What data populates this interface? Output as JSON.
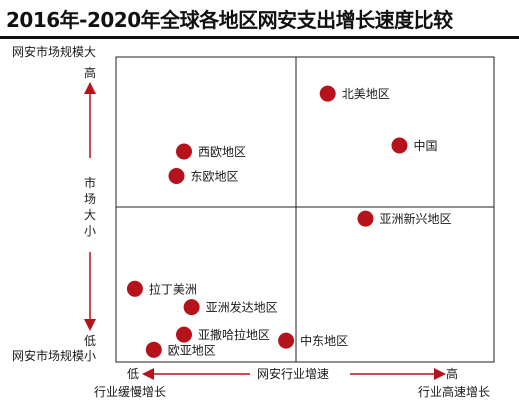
{
  "title": "2016年-2020年全球各地区网安支出增长速度比较",
  "y_axis": {
    "top_label": "网安市场规模大",
    "bottom_label": "网安市场规模小",
    "high": "高",
    "low": "低",
    "name_chars": [
      "市",
      "场",
      "大",
      "小"
    ]
  },
  "x_axis": {
    "name": "网安行业增速",
    "low": "低",
    "high": "高",
    "left_label": "行业缓慢增长",
    "right_label": "行业高速增长"
  },
  "colors": {
    "point": "#b5121b",
    "highlight_text": "#b5121b",
    "grid": "#222222",
    "arrow": "#b5121b"
  },
  "chart_data": {
    "type": "scatter",
    "title": "2016年-2020年全球各地区网安支出增长速度比较",
    "xlabel": "网安行业增速",
    "ylabel": "市场大小",
    "xlim": [
      0,
      10
    ],
    "ylim": [
      0,
      10
    ],
    "points": [
      {
        "label": "北美地区",
        "x": 5.6,
        "y": 8.8,
        "highlight": false
      },
      {
        "label": "中国",
        "x": 7.5,
        "y": 7.1,
        "highlight": true
      },
      {
        "label": "西欧地区",
        "x": 1.8,
        "y": 6.9,
        "highlight": false
      },
      {
        "label": "东欧地区",
        "x": 1.6,
        "y": 6.1,
        "highlight": false
      },
      {
        "label": "亚洲新兴地区",
        "x": 6.6,
        "y": 4.7,
        "highlight": false
      },
      {
        "label": "拉丁美洲",
        "x": 0.5,
        "y": 2.4,
        "highlight": false
      },
      {
        "label": "亚洲发达地区",
        "x": 2.0,
        "y": 1.8,
        "highlight": false
      },
      {
        "label": "亚撒哈拉地区",
        "x": 1.8,
        "y": 0.9,
        "highlight": false
      },
      {
        "label": "中东地区",
        "x": 4.5,
        "y": 0.7,
        "highlight": false
      },
      {
        "label": "欧亚地区",
        "x": 1.0,
        "y": 0.4,
        "highlight": false
      }
    ]
  }
}
